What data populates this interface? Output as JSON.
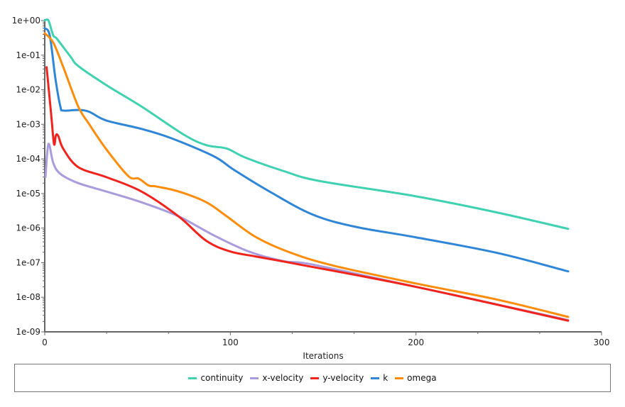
{
  "chart_data": {
    "type": "line",
    "title": "",
    "xlabel": "Iterations",
    "ylabel": "",
    "xlim": [
      0,
      300
    ],
    "ylim": [
      1e-09,
      1
    ],
    "yscale": "log",
    "xticks": [
      "0",
      "100",
      "200",
      "300"
    ],
    "yticks": [
      "1e+00",
      "1e-01",
      "1e-02",
      "1e-03",
      "1e-04",
      "1e-05",
      "1e-06",
      "1e-07",
      "1e-08",
      "1e-09"
    ],
    "legend_position": "bottom",
    "series": [
      {
        "name": "continuity",
        "color": "#3fd1b0",
        "x": [
          0,
          2,
          4.6,
          6.5,
          14,
          18,
          33,
          52,
          75,
          87,
          98,
          108,
          129,
          148,
          200,
          244,
          282
        ],
        "y": [
          1,
          1,
          0.37,
          0.3,
          0.089,
          0.049,
          0.0138,
          0.0033,
          0.0005,
          0.00025,
          0.0002,
          0.00011,
          4.4e-05,
          2.3e-05,
          8.3e-06,
          2.8e-06,
          9.5e-07
        ]
      },
      {
        "name": "x-velocity",
        "color": "#a99bdc",
        "x": [
          0.4,
          2,
          4.6,
          8.4,
          18,
          33,
          52,
          72,
          91,
          110,
          129,
          144,
          200,
          282
        ],
        "y": [
          3e-05,
          0.00027,
          7.6e-05,
          3.7e-05,
          2e-05,
          1.15e-05,
          5.6e-06,
          2.2e-06,
          6.2e-07,
          2.1e-07,
          1.1e-07,
          8.9e-08,
          2e-08,
          2.2e-09
        ]
      },
      {
        "name": "y-velocity",
        "color": "#f0241c",
        "x": [
          1,
          3.4,
          5,
          6,
          7.3,
          10,
          18,
          33,
          52,
          72,
          87,
          100,
          114,
          137,
          200,
          282
        ],
        "y": [
          0.045,
          0.0021,
          0.00027,
          0.00048,
          0.00046,
          0.000195,
          5.8e-05,
          3e-05,
          1.15e-05,
          2.2e-06,
          4.3e-07,
          2.1e-07,
          1.5e-07,
          8.9e-08,
          2e-08,
          2.1e-09
        ]
      },
      {
        "name": "k",
        "color": "#2f86d6",
        "x": [
          0,
          2.7,
          5.7,
          8.4,
          10,
          18,
          24,
          33,
          52,
          68,
          91,
          102,
          121,
          144,
          167,
          200,
          244,
          282
        ],
        "y": [
          0.6,
          0.37,
          0.022,
          0.0033,
          0.0025,
          0.0026,
          0.0023,
          0.0013,
          0.00074,
          0.0004,
          0.00012,
          4.8e-05,
          1.15e-05,
          2.5e-06,
          1.1e-06,
          5.4e-07,
          1.9e-07,
          5.6e-08
        ]
      },
      {
        "name": "omega",
        "color": "#ff8c0a",
        "x": [
          0,
          4.6,
          10,
          18,
          24,
          33,
          45,
          50.6,
          56,
          60,
          72,
          87,
          98,
          114,
          133,
          156,
          200,
          244,
          282
        ],
        "y": [
          0.43,
          0.23,
          0.045,
          0.0033,
          0.001,
          0.000195,
          3.2e-05,
          2.7e-05,
          1.7e-05,
          1.6e-05,
          1.15e-05,
          5.6e-06,
          2.2e-06,
          5.4e-07,
          1.9e-07,
          8.1e-08,
          2.5e-08,
          8.5e-09,
          2.7e-09
        ]
      }
    ]
  }
}
